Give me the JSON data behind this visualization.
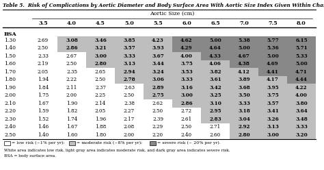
{
  "title": "Table 5.  Risk of Complications by Aortic Diameter and Body Surface Area With Aortic Size Index Given Within Chart",
  "col_header_main": "Aortic Size (cm)",
  "col_headers": [
    "3.5",
    "4.0",
    "4.5",
    "5.0",
    "5.5",
    "6.0",
    "6.5",
    "7.0",
    "7.5",
    "8.0"
  ],
  "row_header_label": "BSA",
  "row_headers": [
    "1.30",
    "1.40",
    "1.50",
    "1.60",
    "1.70",
    "1.80",
    "1.90",
    "2.00",
    "2.10",
    "2.20",
    "2.30",
    "2.40",
    "2.50"
  ],
  "data": [
    [
      2.69,
      3.08,
      3.46,
      3.85,
      4.23,
      4.62,
      5.0,
      5.38,
      5.77,
      6.15
    ],
    [
      2.5,
      2.86,
      3.21,
      3.57,
      3.93,
      4.29,
      4.64,
      5.0,
      5.36,
      5.71
    ],
    [
      2.33,
      2.67,
      3.0,
      3.33,
      3.67,
      4.0,
      4.33,
      4.67,
      5.0,
      5.33
    ],
    [
      2.19,
      2.5,
      2.8,
      3.13,
      3.44,
      3.75,
      4.06,
      4.38,
      4.69,
      5.0
    ],
    [
      2.05,
      2.35,
      2.65,
      2.94,
      3.24,
      3.53,
      3.82,
      4.12,
      4.41,
      4.71
    ],
    [
      1.94,
      2.22,
      2.5,
      2.78,
      3.06,
      3.33,
      3.61,
      3.89,
      4.17,
      4.44
    ],
    [
      1.84,
      2.11,
      2.37,
      2.63,
      2.89,
      3.16,
      3.42,
      3.68,
      3.95,
      4.22
    ],
    [
      1.75,
      2.0,
      2.25,
      2.5,
      2.75,
      3.0,
      3.25,
      3.5,
      3.75,
      4.0
    ],
    [
      1.67,
      1.9,
      2.14,
      2.38,
      2.62,
      2.86,
      3.1,
      3.33,
      3.57,
      3.8
    ],
    [
      1.59,
      1.82,
      2.05,
      2.27,
      2.5,
      2.72,
      2.95,
      3.18,
      3.41,
      3.64
    ],
    [
      1.52,
      1.74,
      1.96,
      2.17,
      2.39,
      2.61,
      2.83,
      3.04,
      3.26,
      3.48
    ],
    [
      1.46,
      1.67,
      1.88,
      2.08,
      2.29,
      2.5,
      2.71,
      2.92,
      3.13,
      3.33
    ],
    [
      1.4,
      1.6,
      1.8,
      2.0,
      2.2,
      2.4,
      2.6,
      2.8,
      3.0,
      3.2
    ]
  ],
  "low_risk_threshold": 2.75,
  "moderate_risk_threshold": 4.25,
  "color_white": "#FFFFFF",
  "color_light_gray": "#BEBEBE",
  "color_dark_gray": "#888888",
  "footer_line1": "= low risk (~1% per yr);        = moderate risk (~8% per yr);        = severe risk (~ 20% per yr).",
  "footer_line2": "White area indicates low risk, light gray area indicates moderate risk, and dark gray area indicates severe risk.",
  "footer_line3": "BSA = body surface area."
}
